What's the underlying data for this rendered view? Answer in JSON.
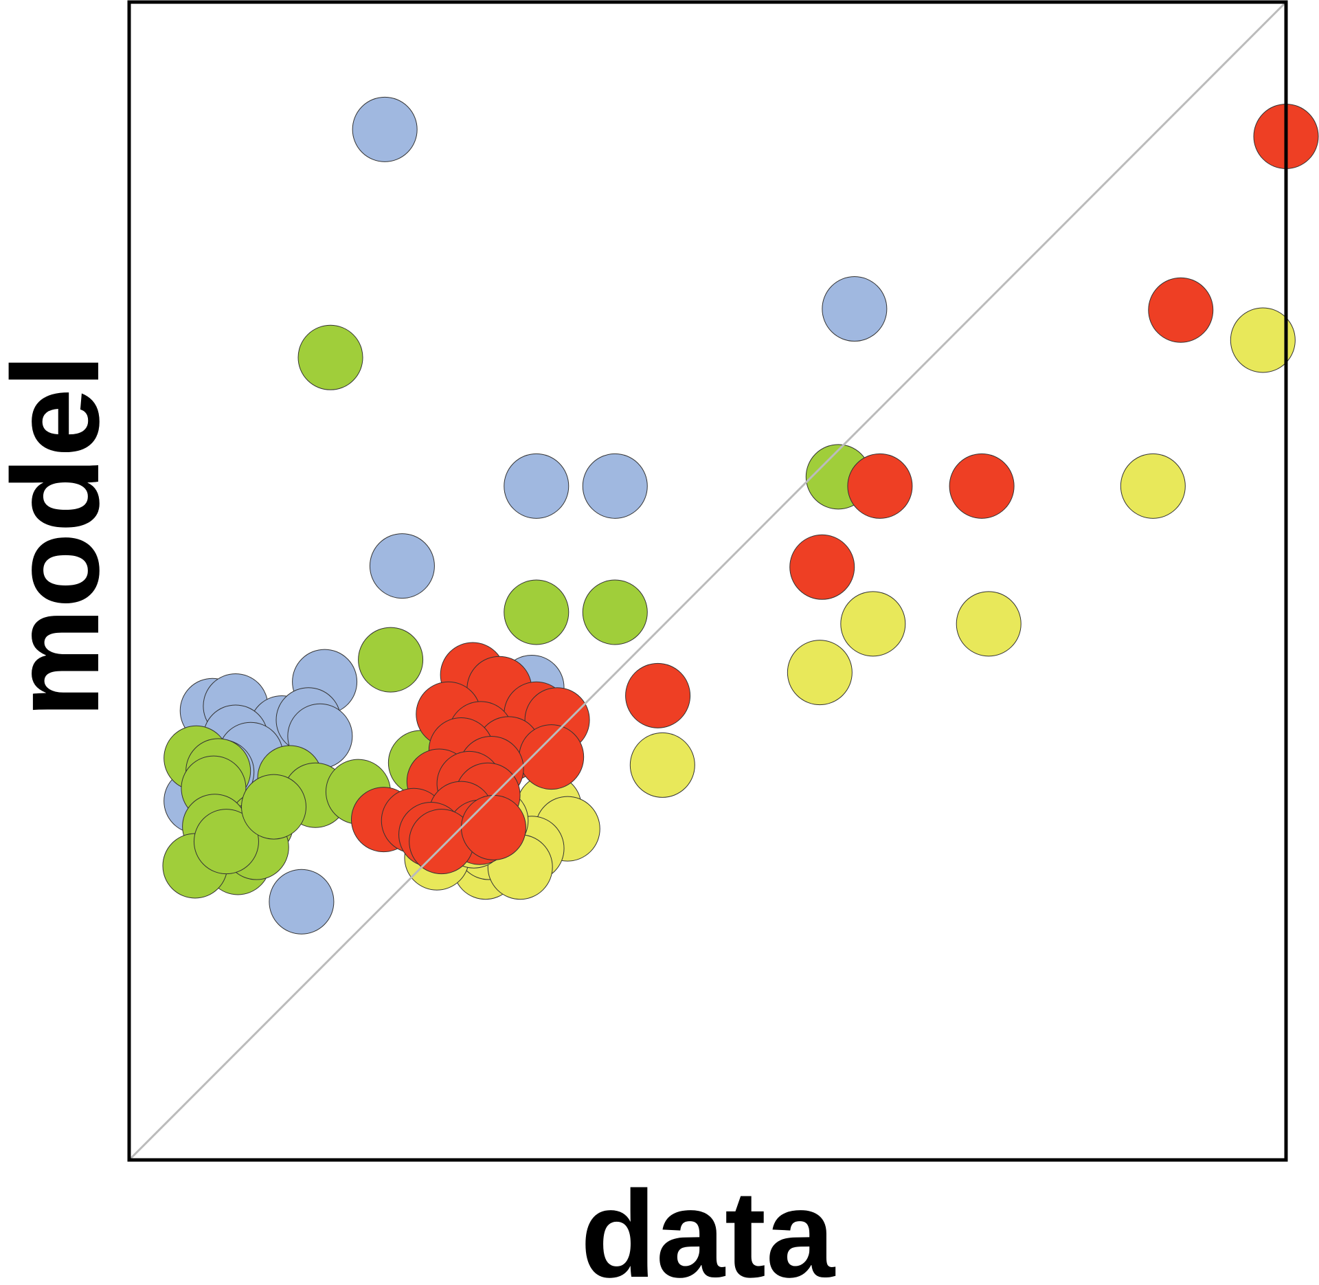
{
  "chart_data": {
    "type": "scatter",
    "title": "",
    "xlabel": "data",
    "ylabel": "model",
    "xlim": [
      0,
      100
    ],
    "ylim": [
      0,
      100
    ],
    "grid": false,
    "legend": "none",
    "reference_line": {
      "type": "identity",
      "color": "#bbbbbb"
    },
    "frame_color": "#000000",
    "series": [
      {
        "color": "#a0b8e0",
        "points": [
          {
            "x": 22.1,
            "y": 89.0
          },
          {
            "x": 62.7,
            "y": 73.5
          },
          {
            "x": 35.2,
            "y": 58.2
          },
          {
            "x": 42.0,
            "y": 58.2
          },
          {
            "x": 23.6,
            "y": 51.3
          },
          {
            "x": 34.8,
            "y": 40.8
          },
          {
            "x": 16.9,
            "y": 41.3
          },
          {
            "x": 7.2,
            "y": 38.8
          },
          {
            "x": 9.2,
            "y": 39.2
          },
          {
            "x": 13.2,
            "y": 37.3
          },
          {
            "x": 15.5,
            "y": 38.0
          },
          {
            "x": 16.5,
            "y": 36.6
          },
          {
            "x": 9.2,
            "y": 36.5
          },
          {
            "x": 10.5,
            "y": 35.0
          },
          {
            "x": 5.8,
            "y": 31.0
          },
          {
            "x": 8.0,
            "y": 33.5
          },
          {
            "x": 14.9,
            "y": 22.3
          }
        ]
      },
      {
        "color": "#a0ce3a",
        "points": [
          {
            "x": 17.4,
            "y": 69.3
          },
          {
            "x": 61.3,
            "y": 59.0
          },
          {
            "x": 35.2,
            "y": 47.3
          },
          {
            "x": 42.0,
            "y": 47.3
          },
          {
            "x": 22.6,
            "y": 43.2
          },
          {
            "x": 5.8,
            "y": 34.7
          },
          {
            "x": 7.7,
            "y": 33.6
          },
          {
            "x": 7.3,
            "y": 32.1
          },
          {
            "x": 13.9,
            "y": 33.0
          },
          {
            "x": 16.1,
            "y": 31.5
          },
          {
            "x": 19.8,
            "y": 31.8
          },
          {
            "x": 25.2,
            "y": 34.3
          },
          {
            "x": 11.4,
            "y": 29.0
          },
          {
            "x": 10.7,
            "y": 28.0
          },
          {
            "x": 7.4,
            "y": 28.8
          },
          {
            "x": 9.4,
            "y": 25.7
          },
          {
            "x": 5.7,
            "y": 25.4
          },
          {
            "x": 11.0,
            "y": 27.0
          },
          {
            "x": 8.4,
            "y": 27.5
          },
          {
            "x": 12.5,
            "y": 30.5
          }
        ]
      },
      {
        "color": "#e8e85a",
        "points": [
          {
            "x": 98.0,
            "y": 70.8
          },
          {
            "x": 88.5,
            "y": 58.2
          },
          {
            "x": 64.3,
            "y": 46.3
          },
          {
            "x": 74.3,
            "y": 46.3
          },
          {
            "x": 59.7,
            "y": 42.1
          },
          {
            "x": 46.1,
            "y": 34.1
          },
          {
            "x": 36.3,
            "y": 30.5
          },
          {
            "x": 37.9,
            "y": 28.6
          },
          {
            "x": 34.8,
            "y": 26.9
          },
          {
            "x": 30.8,
            "y": 25.3
          },
          {
            "x": 31.1,
            "y": 27.0
          },
          {
            "x": 31.7,
            "y": 29.3
          },
          {
            "x": 26.6,
            "y": 26.1
          },
          {
            "x": 33.8,
            "y": 25.3
          },
          {
            "x": 29.8,
            "y": 28.0
          }
        ]
      },
      {
        "color": "#ee3f24",
        "points": [
          {
            "x": 100.0,
            "y": 88.4
          },
          {
            "x": 90.9,
            "y": 73.4
          },
          {
            "x": 64.9,
            "y": 58.2
          },
          {
            "x": 73.7,
            "y": 58.2
          },
          {
            "x": 59.9,
            "y": 51.2
          },
          {
            "x": 45.7,
            "y": 40.1
          },
          {
            "x": 29.7,
            "y": 41.9
          },
          {
            "x": 32.0,
            "y": 40.7
          },
          {
            "x": 35.2,
            "y": 38.5
          },
          {
            "x": 37.0,
            "y": 38.0
          },
          {
            "x": 27.6,
            "y": 38.5
          },
          {
            "x": 30.4,
            "y": 36.8
          },
          {
            "x": 32.8,
            "y": 35.5
          },
          {
            "x": 36.5,
            "y": 34.8
          },
          {
            "x": 28.7,
            "y": 35.4
          },
          {
            "x": 31.3,
            "y": 33.8
          },
          {
            "x": 26.8,
            "y": 32.7
          },
          {
            "x": 29.4,
            "y": 32.5
          },
          {
            "x": 31.0,
            "y": 31.5
          },
          {
            "x": 22.0,
            "y": 29.4
          },
          {
            "x": 24.6,
            "y": 29.3
          },
          {
            "x": 28.7,
            "y": 29.9
          },
          {
            "x": 30.3,
            "y": 28.3
          },
          {
            "x": 26.1,
            "y": 28.1
          },
          {
            "x": 27.0,
            "y": 27.5
          },
          {
            "x": 31.5,
            "y": 28.7
          }
        ]
      }
    ]
  }
}
